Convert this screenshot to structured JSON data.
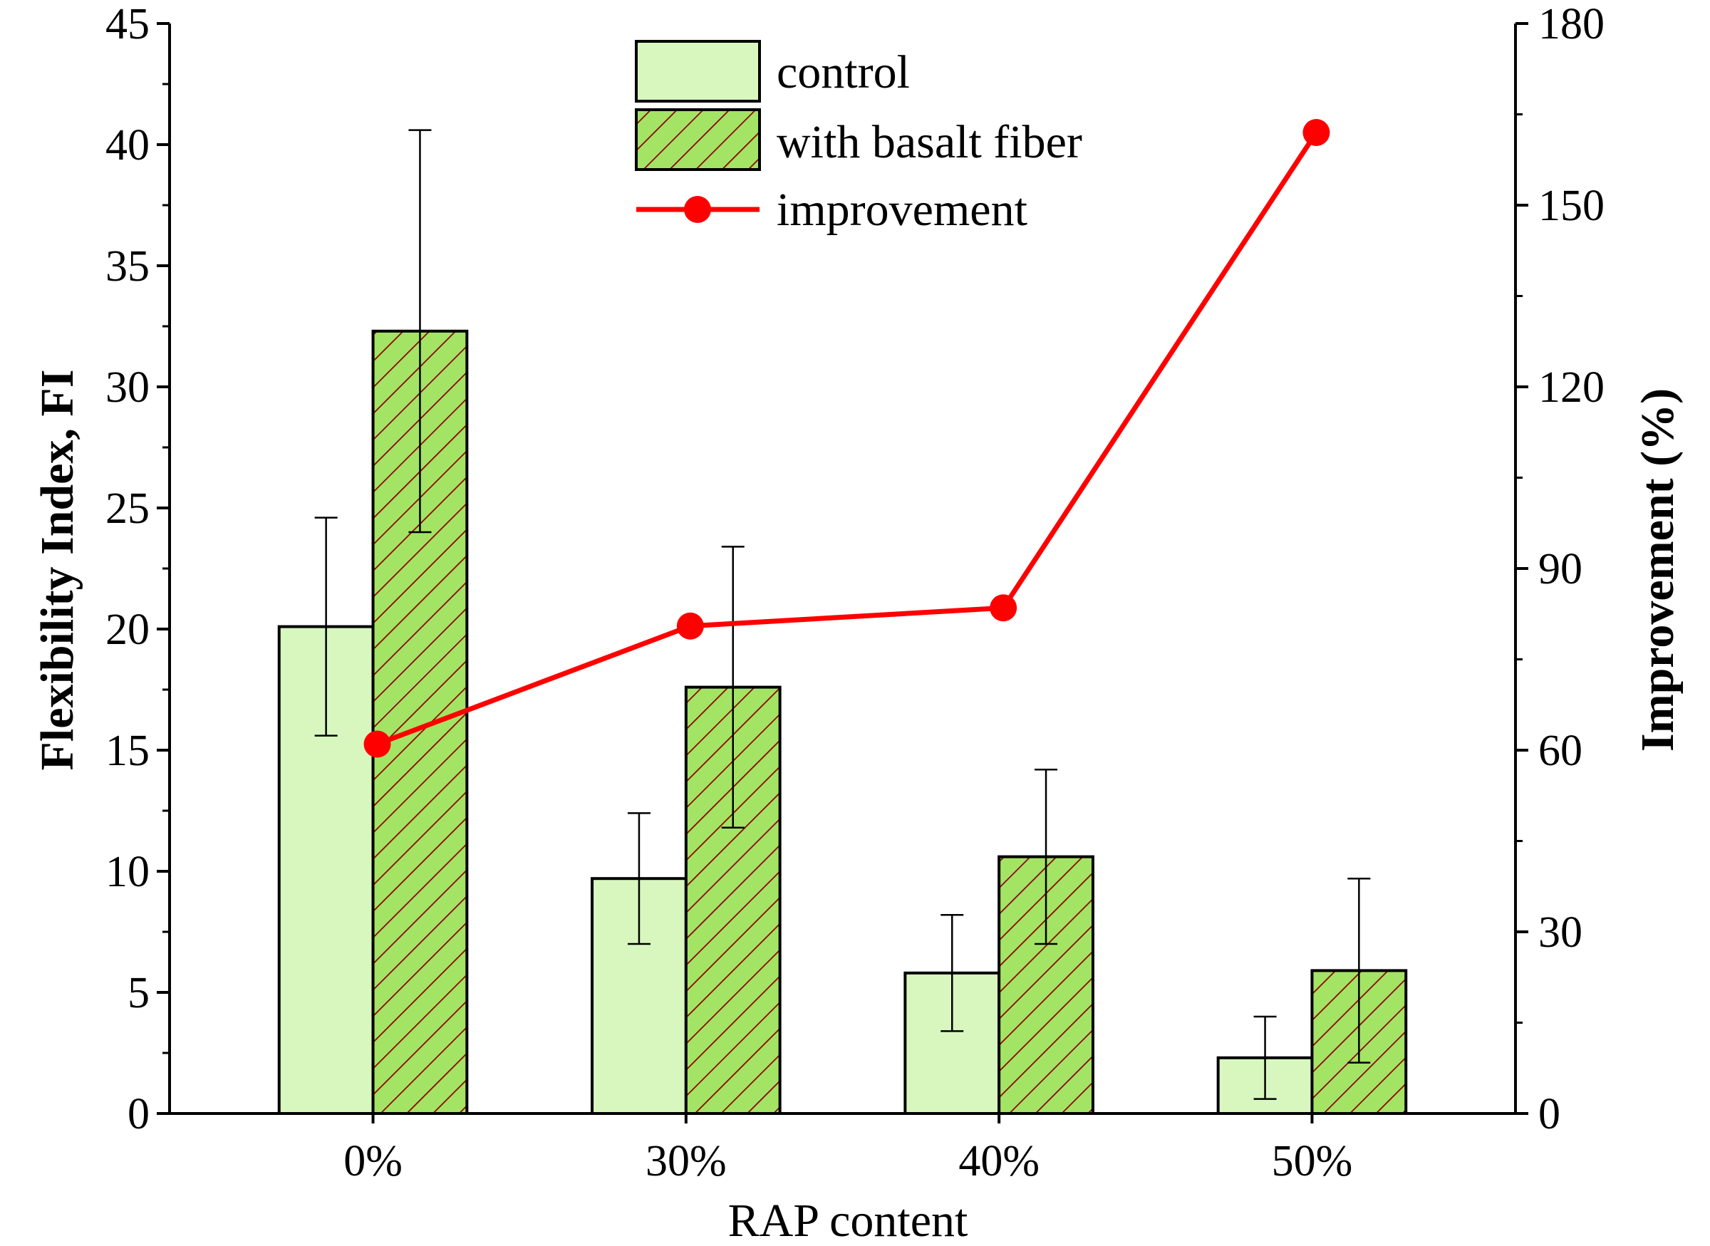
{
  "chart_data": {
    "type": "bar",
    "title": "",
    "xlabel": "RAP content",
    "ylabel": "Flexibility Index, FI",
    "ylabel_right": "Improvement (%)",
    "categories": [
      "0%",
      "30%",
      "40%",
      "50%"
    ],
    "ylim": [
      0,
      45
    ],
    "ylim_right": [
      0,
      180
    ],
    "yticks": [
      "0",
      "5",
      "10",
      "15",
      "20",
      "25",
      "30",
      "35",
      "40",
      "45"
    ],
    "yticks_right": [
      "0",
      "30",
      "60",
      "90",
      "120",
      "150",
      "180"
    ],
    "series": [
      {
        "name": "control",
        "values": [
          20.1,
          9.7,
          5.8,
          2.3
        ],
        "error": [
          4.5,
          2.7,
          2.4,
          1.7
        ],
        "color": "#d8f7bf",
        "pattern": "none"
      },
      {
        "name": "with basalt fiber",
        "values": [
          32.3,
          17.6,
          10.6,
          5.9
        ],
        "error": [
          8.3,
          5.8,
          3.6,
          3.8
        ],
        "color": "#a4e464",
        "pattern": "hatch"
      }
    ],
    "line_series": {
      "name": "improvement",
      "axis": "right",
      "values": [
        61,
        80.5,
        83.5,
        162
      ],
      "color": "#ff0000"
    },
    "legend_position": "top-center",
    "colors": {
      "axis": "#000000",
      "hatch_line": "#8b0000"
    }
  }
}
